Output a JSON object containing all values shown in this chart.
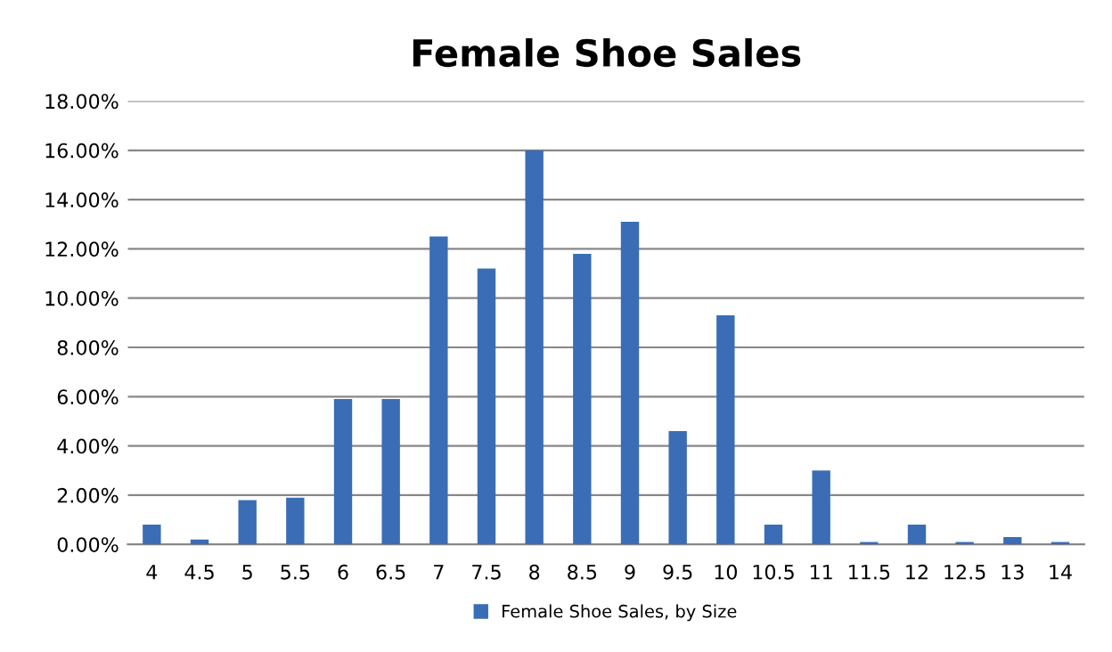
{
  "chart_data": {
    "type": "bar",
    "title": "Female Shoe Sales",
    "categories": [
      "4",
      "4.5",
      "5",
      "5.5",
      "6",
      "6.5",
      "7",
      "7.5",
      "8",
      "8.5",
      "9",
      "9.5",
      "10",
      "10.5",
      "11",
      "11.5",
      "12",
      "12.5",
      "13",
      "14"
    ],
    "series": [
      {
        "name": "Female Shoe Sales, by Size",
        "color": "#3a6db5",
        "values": [
          0.8,
          0.2,
          1.8,
          1.9,
          5.9,
          5.9,
          12.5,
          11.2,
          16.0,
          11.8,
          13.1,
          4.6,
          9.3,
          0.8,
          3.0,
          0.1,
          0.8,
          0.1,
          0.3,
          0.1
        ]
      }
    ],
    "ylim": [
      0,
      18
    ],
    "yticks": [
      {
        "value": 0,
        "label": "0.00%"
      },
      {
        "value": 2,
        "label": "2.00%"
      },
      {
        "value": 4,
        "label": "4.00%"
      },
      {
        "value": 6,
        "label": "6.00%"
      },
      {
        "value": 8,
        "label": "8.00%"
      },
      {
        "value": 10,
        "label": "10.00%"
      },
      {
        "value": 12,
        "label": "12.00%"
      },
      {
        "value": 14,
        "label": "14.00%"
      },
      {
        "value": 16,
        "label": "16.00%"
      },
      {
        "value": 18,
        "label": "18.00%"
      }
    ],
    "grid": "y",
    "legend": "bottom"
  }
}
